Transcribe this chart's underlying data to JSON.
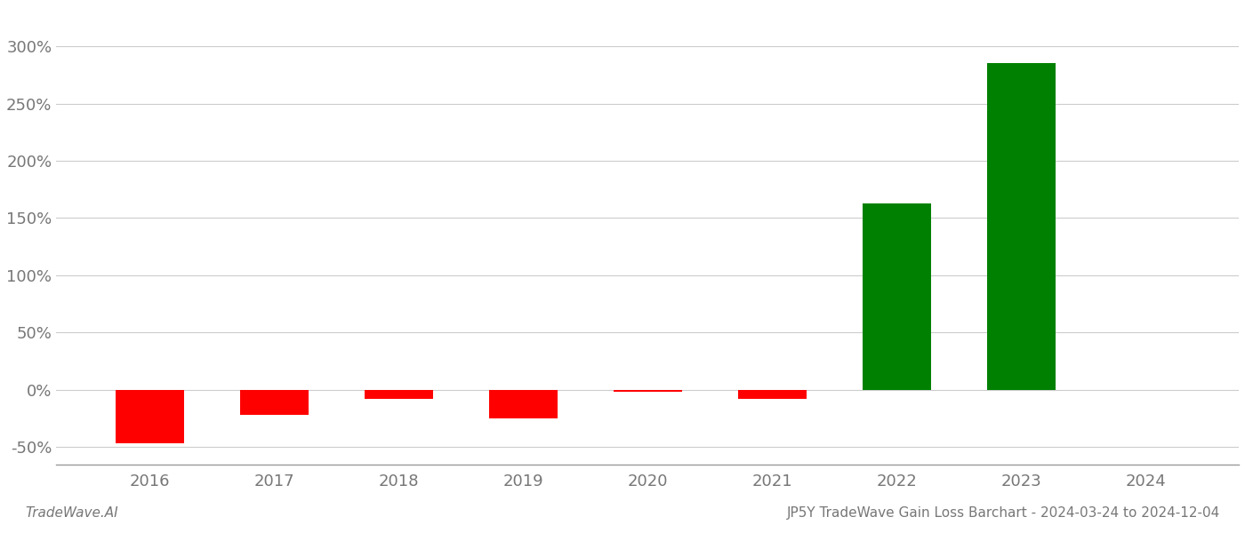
{
  "years": [
    2016,
    2017,
    2018,
    2019,
    2020,
    2021,
    2022,
    2023,
    2024
  ],
  "values": [
    -47,
    -22,
    -8,
    -25,
    -2,
    -8,
    163,
    285,
    0
  ],
  "bar_colors": [
    "#ff0000",
    "#ff0000",
    "#ff0000",
    "#ff0000",
    "#ff0000",
    "#ff0000",
    "#008000",
    "#008000",
    "#ffffff"
  ],
  "ylim": [
    -65,
    335
  ],
  "yticks": [
    -50,
    0,
    50,
    100,
    150,
    200,
    250,
    300
  ],
  "title": "JP5Y TradeWave Gain Loss Barchart - 2024-03-24 to 2024-12-04",
  "footer_left": "TradeWave.AI",
  "bar_width": 0.55,
  "background_color": "#ffffff",
  "grid_color": "#cccccc",
  "axis_color": "#999999",
  "text_color": "#777777",
  "tick_fontsize": 13,
  "footer_fontsize": 11
}
